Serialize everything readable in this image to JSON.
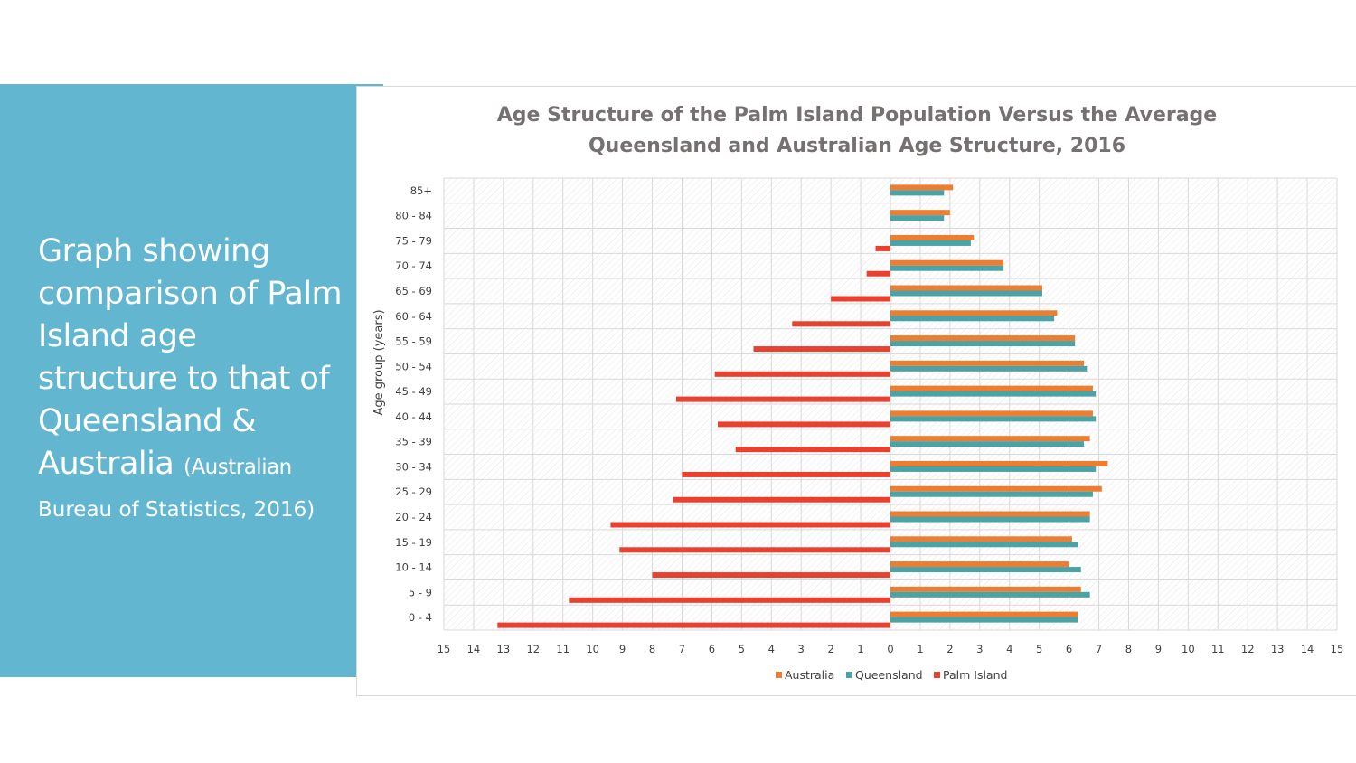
{
  "slide": {
    "headline": "Graph showing comparison of Palm Island age structure to that of Queensland & Australia",
    "citation_part1": "(Australian",
    "citation_part2": "Bureau of Statistics, 2016)"
  },
  "colors": {
    "panel": "#62b6cf",
    "australia": "#ed7d31",
    "queensland": "#4aa3a6",
    "palm_island": "#e8412f"
  },
  "chart_data": {
    "type": "bar",
    "orientation": "horizontal",
    "title_line1": "Age Structure of the Palm Island Population Versus the Average",
    "title_line2": "Queensland and Australian Age Structure, 2016",
    "ylabel": "Age group (years)",
    "xlabel": "",
    "xlim": [
      -15,
      15
    ],
    "x_ticks": [
      "15",
      "14",
      "13",
      "12",
      "11",
      "10",
      "9",
      "8",
      "7",
      "6",
      "5",
      "4",
      "3",
      "2",
      "1",
      "0",
      "1",
      "2",
      "3",
      "4",
      "5",
      "6",
      "7",
      "8",
      "9",
      "10",
      "11",
      "12",
      "13",
      "14",
      "15"
    ],
    "categories": [
      "85+",
      "80 - 84",
      "75 - 79",
      "70 - 74",
      "65 - 69",
      "60 - 64",
      "55 - 59",
      "50 - 54",
      "45 - 49",
      "40 - 44",
      "35 - 39",
      "30 - 34",
      "25 - 29",
      "20 - 24",
      "15 - 19",
      "10 - 14",
      "5 - 9",
      "0 - 4"
    ],
    "series": [
      {
        "name": "Australia",
        "color": "#ed7d31",
        "values": [
          2.1,
          2.0,
          2.8,
          3.8,
          5.1,
          5.6,
          6.2,
          6.5,
          6.8,
          6.8,
          6.7,
          7.3,
          7.1,
          6.7,
          6.1,
          6.0,
          6.4,
          6.3
        ]
      },
      {
        "name": "Queensland",
        "color": "#4aa3a6",
        "values": [
          1.8,
          1.8,
          2.7,
          3.8,
          5.1,
          5.5,
          6.2,
          6.6,
          6.9,
          6.9,
          6.5,
          6.9,
          6.8,
          6.7,
          6.3,
          6.4,
          6.7,
          6.3
        ]
      },
      {
        "name": "Palm Island",
        "color": "#e8412f",
        "values": [
          0,
          0,
          -0.5,
          -0.8,
          -2.0,
          -3.3,
          -4.6,
          -5.9,
          -7.2,
          -5.8,
          -5.2,
          -7.0,
          -7.3,
          -9.4,
          -9.1,
          -8.0,
          -10.8,
          -13.2
        ]
      }
    ],
    "legend": [
      "Australia",
      "Queensland",
      "Palm Island"
    ],
    "legend_position": "bottom",
    "grid": true
  }
}
